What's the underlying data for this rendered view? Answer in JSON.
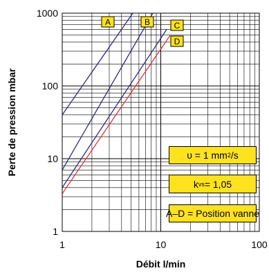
{
  "chart_data": {
    "type": "line",
    "xscale": "log",
    "yscale": "log",
    "xlim": [
      1,
      100
    ],
    "ylim": [
      1,
      1000
    ],
    "xlabel": "Débit l/min",
    "ylabel": "Perte de pression mbar",
    "x_ticks": [
      "1",
      "10",
      "100"
    ],
    "y_ticks": [
      "1",
      "10",
      "100",
      "1000"
    ],
    "grid": true,
    "series": [
      {
        "name": "A",
        "color": "#2a2a8a",
        "points": [
          [
            1,
            40
          ],
          [
            5.2,
            1000
          ]
        ]
      },
      {
        "name": "B",
        "color": "#2a2a8a",
        "points": [
          [
            1,
            7
          ],
          [
            8.3,
            1000
          ]
        ]
      },
      {
        "name": "C",
        "color": "#2a2a8a",
        "points": [
          [
            1,
            4.0
          ],
          [
            11.5,
            600
          ]
        ]
      },
      {
        "name": "D",
        "color": "#e0322a",
        "points": [
          [
            1,
            3.3
          ],
          [
            12.5,
            500
          ]
        ]
      }
    ],
    "annotations": {
      "viscosity": {
        "prefix": "υ = 1 mm",
        "sup": "2",
        "suffix": "/s"
      },
      "kvs": {
        "prefix": "k",
        "sub": "vs",
        "suffix": " = 1,05"
      },
      "legend_note": "A–D = Position vanne"
    }
  }
}
